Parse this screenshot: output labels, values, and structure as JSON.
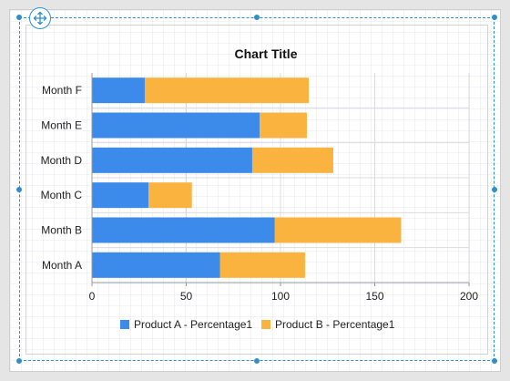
{
  "chart_data": {
    "type": "bar",
    "orientation": "horizontal",
    "stacked": true,
    "title": "Chart Title",
    "categories": [
      "Month A",
      "Month B",
      "Month C",
      "Month D",
      "Month E",
      "Month F"
    ],
    "series": [
      {
        "name": "Product A - Percentage1",
        "values": [
          68,
          97,
          30,
          85,
          89,
          28
        ],
        "color": "#3c8aea"
      },
      {
        "name": "Product B - Percentage1",
        "values": [
          45,
          67,
          23,
          43,
          25,
          87
        ],
        "color": "#fbb340"
      }
    ],
    "xlim": [
      0,
      200
    ],
    "xticks": [
      0,
      50,
      100,
      150,
      200
    ],
    "xtick_labels": [
      "0",
      "50",
      "100",
      "150",
      "200"
    ],
    "grid": true,
    "legend_position": "bottom"
  },
  "designer": {
    "move_handle_icon": "move-arrows-icon",
    "selection_color": "#2f8fc8"
  }
}
